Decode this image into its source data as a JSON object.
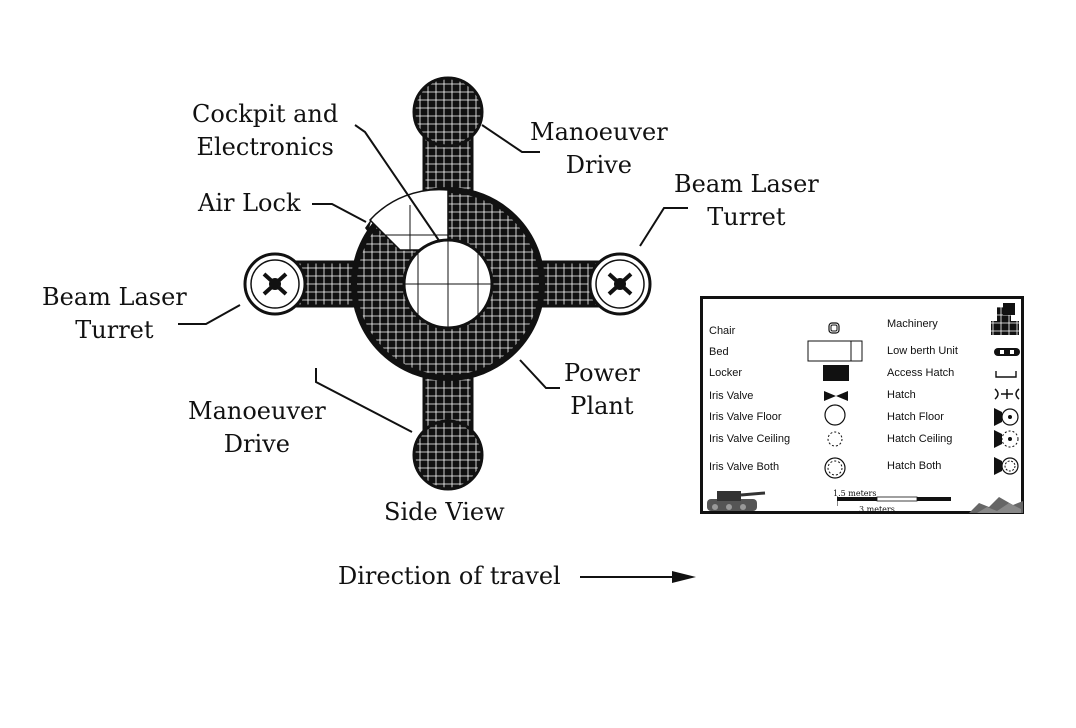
{
  "labels": {
    "cockpit": [
      "Cockpit and",
      "Electronics"
    ],
    "maneuver_top": [
      "Manoeuver",
      "Drive"
    ],
    "beam_laser_right": [
      "Beam Laser",
      "Turret"
    ],
    "air_lock": "Air Lock",
    "beam_laser_left": [
      "Beam Laser",
      "Turret"
    ],
    "maneuver_bottom": [
      "Manoeuver",
      "Drive"
    ],
    "power_plant": [
      "Power",
      "Plant"
    ],
    "side_view": "Side View",
    "direction": "Direction of travel"
  },
  "legend": {
    "left": [
      "Chair",
      "Bed",
      "Locker",
      "Iris Valve",
      "Iris Valve Floor",
      "Iris Valve Ceiling",
      "Iris Valve Both"
    ],
    "right": [
      "Machinery",
      "Low berth Unit",
      "Access Hatch",
      "Hatch",
      "Hatch Floor",
      "Hatch Ceiling",
      "Hatch Both"
    ],
    "scale_small": "1.5 meters",
    "scale_large": "3 meters"
  },
  "colors": {
    "ink": "#111111",
    "background": "#ffffff"
  },
  "icons": [
    "chair-icon",
    "bed-icon",
    "locker-icon",
    "iris-valve-icon",
    "iris-valve-floor-icon",
    "iris-valve-ceiling-icon",
    "iris-valve-both-icon",
    "machinery-icon",
    "low-berth-icon",
    "access-hatch-icon",
    "hatch-icon",
    "hatch-floor-icon",
    "hatch-ceiling-icon",
    "hatch-both-icon",
    "tank-icon",
    "rocks-icon"
  ]
}
